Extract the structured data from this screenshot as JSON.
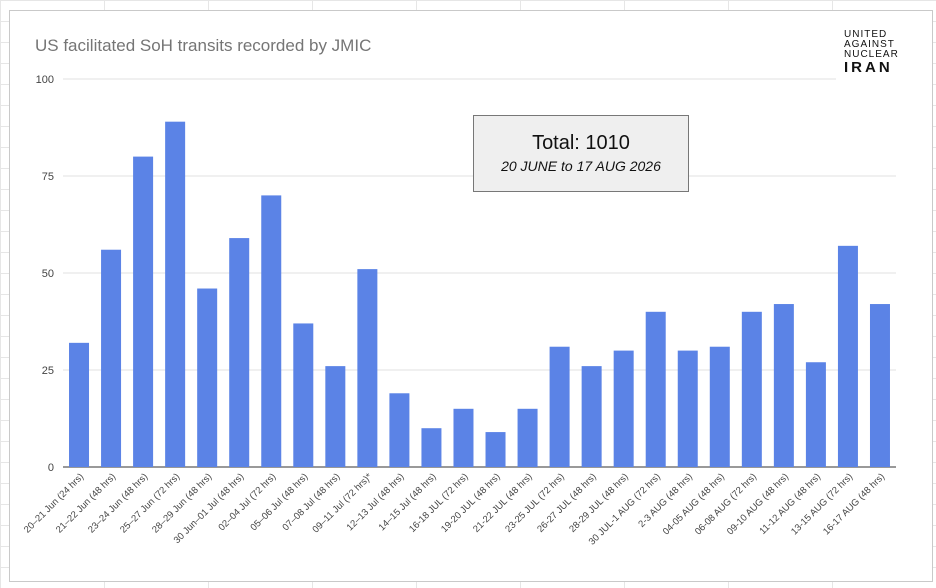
{
  "chart_data": {
    "type": "bar",
    "title": "US facilitated SoH transits recorded by JMIC",
    "xlabel": "",
    "ylabel": "",
    "ylim": [
      0,
      100
    ],
    "yticks": [
      0,
      25,
      50,
      75,
      100
    ],
    "grid": true,
    "legend": "none",
    "bar_color": "#5b83e6",
    "categories": [
      "20–21 Jun (24 hrs)",
      "21–22 Jun (48 hrs)",
      "23–24 Jun (48 hrs)",
      "25–27 Jun (72 hrs)",
      "28–29 Jun (48 hrs)",
      "30 Jun–01 Jul (48 hrs)",
      "02–04 Jul (72 hrs)",
      "05–06 Jul (48 hrs)",
      "07–08 Jul (48 hrs)",
      "09–11 Jul (72 hrs)*",
      "12–13 Jul (48 hrs)",
      "14–15 Jul (48 hrs)",
      "16-18 JUL (72 hrs)",
      "19-20 JUL (48 hrs)",
      "21-22 JUL (48 hrs)",
      "23-25 JUL (72 hrs)",
      "26-27 JUL (48 hrs)",
      "28-29 JUL (48 hrs)",
      "30 JUL-1 AUG (72 hrs)",
      "2-3 AUG (48 hrs)",
      "04-05 AUG (48 hrs)",
      "06-08 AUG (72 hrs)",
      "09-10 AUG (48 hrs)",
      "11-12 AUG (48 hrs)",
      "13-15 AUG (72 hrs)",
      "16-17 AUG (48 hrs)"
    ],
    "values": [
      32,
      56,
      80,
      89,
      46,
      59,
      70,
      37,
      26,
      51,
      19,
      10,
      15,
      9,
      15,
      31,
      26,
      30,
      40,
      30,
      31,
      40,
      42,
      27,
      57,
      42
    ]
  },
  "annotation": {
    "total_label": "Total: 1010",
    "date_range": "20 JUNE to 17 AUG 2026"
  },
  "logo": {
    "lines": [
      "UNITED",
      "AGAINST",
      "NUCLEAR",
      "IRAN"
    ]
  },
  "colors": {
    "title": "#757575",
    "grid": "#e0e0e0",
    "axis_text": "#444444"
  }
}
